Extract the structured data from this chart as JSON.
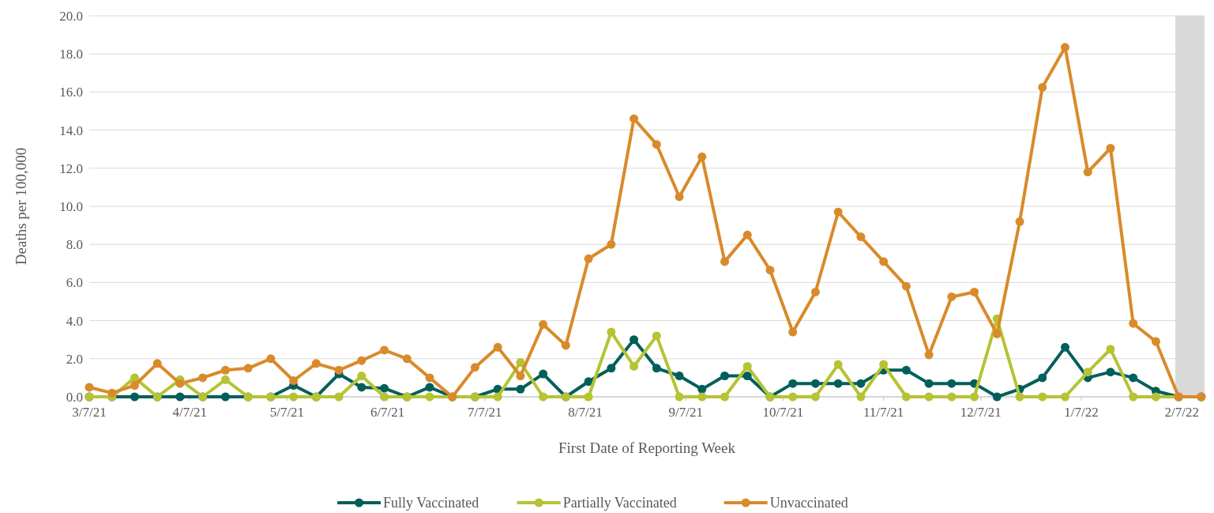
{
  "chart_data": {
    "type": "line",
    "xlabel": "First Date of Reporting Week",
    "ylabel": "Deaths per 100,000",
    "x": [
      "2021-03-07",
      "2021-03-14",
      "2021-03-21",
      "2021-03-28",
      "2021-04-04",
      "2021-04-11",
      "2021-04-18",
      "2021-04-25",
      "2021-05-02",
      "2021-05-09",
      "2021-05-16",
      "2021-05-23",
      "2021-05-30",
      "2021-06-06",
      "2021-06-13",
      "2021-06-20",
      "2021-06-27",
      "2021-07-04",
      "2021-07-11",
      "2021-07-18",
      "2021-07-25",
      "2021-08-01",
      "2021-08-08",
      "2021-08-15",
      "2021-08-22",
      "2021-08-29",
      "2021-09-05",
      "2021-09-12",
      "2021-09-19",
      "2021-09-26",
      "2021-10-03",
      "2021-10-10",
      "2021-10-17",
      "2021-10-24",
      "2021-10-31",
      "2021-11-07",
      "2021-11-14",
      "2021-11-21",
      "2021-11-28",
      "2021-12-05",
      "2021-12-12",
      "2021-12-19",
      "2021-12-26",
      "2022-01-02",
      "2022-01-09",
      "2022-01-16",
      "2022-01-23",
      "2022-01-30",
      "2022-02-06",
      "2022-02-13"
    ],
    "series": [
      {
        "name": "Fully Vaccinated",
        "color": "#005f5a",
        "values": [
          0,
          0,
          0,
          0,
          0,
          0,
          0,
          0,
          0,
          0.6,
          0,
          1.2,
          0.5,
          0.45,
          0,
          0.5,
          0,
          0,
          0.4,
          0.4,
          1.2,
          0,
          0.8,
          1.5,
          3.0,
          1.5,
          1.1,
          0.4,
          1.1,
          1.1,
          0,
          0.7,
          0.7,
          0.7,
          0.7,
          1.4,
          1.4,
          0.7,
          0.7,
          0.7,
          0,
          0.4,
          1.0,
          2.6,
          1.0,
          1.3,
          1.0,
          0.3,
          0,
          0
        ]
      },
      {
        "name": "Partially Vaccinated",
        "color": "#b5c334",
        "values": [
          0,
          0,
          1.0,
          0,
          0.9,
          0,
          0.9,
          0,
          0,
          0,
          0,
          0,
          1.1,
          0,
          0,
          0,
          0,
          0,
          0,
          1.8,
          0,
          0,
          0,
          3.4,
          1.6,
          3.2,
          0,
          0,
          0,
          1.6,
          0,
          0,
          0,
          1.7,
          0,
          1.7,
          0,
          0,
          0,
          0,
          4.1,
          0,
          0,
          0,
          1.3,
          2.5,
          0,
          0,
          0,
          0
        ]
      },
      {
        "name": "Unvaccinated",
        "color": "#d98a2b",
        "values": [
          0.5,
          0.2,
          0.6,
          1.75,
          0.7,
          1.0,
          1.4,
          1.5,
          2.0,
          0.85,
          1.75,
          1.4,
          1.9,
          2.45,
          2.0,
          1.0,
          0,
          1.55,
          2.6,
          1.1,
          3.8,
          2.7,
          7.25,
          8.0,
          14.6,
          13.25,
          10.5,
          12.6,
          7.1,
          8.5,
          6.65,
          3.4,
          5.5,
          9.7,
          8.4,
          7.1,
          5.8,
          2.2,
          5.25,
          5.5,
          3.3,
          9.2,
          16.25,
          18.35,
          11.8,
          13.05,
          3.85,
          2.9,
          0,
          0
        ]
      }
    ],
    "xlim": [
      "2021-03-07",
      "2022-02-14"
    ],
    "xticks": [
      {
        "value": "2021-03-07",
        "label": "3/7/21"
      },
      {
        "value": "2021-04-07",
        "label": "4/7/21"
      },
      {
        "value": "2021-05-07",
        "label": "5/7/21"
      },
      {
        "value": "2021-06-07",
        "label": "6/7/21"
      },
      {
        "value": "2021-07-07",
        "label": "7/7/21"
      },
      {
        "value": "2021-08-07",
        "label": "8/7/21"
      },
      {
        "value": "2021-09-07",
        "label": "9/7/21"
      },
      {
        "value": "2021-10-07",
        "label": "10/7/21"
      },
      {
        "value": "2021-11-07",
        "label": "11/7/21"
      },
      {
        "value": "2021-12-07",
        "label": "12/7/21"
      },
      {
        "value": "2022-01-07",
        "label": "1/7/22"
      },
      {
        "value": "2022-02-07",
        "label": "2/7/22"
      }
    ],
    "ylim": [
      0,
      20
    ],
    "yticks": [
      {
        "value": 0,
        "label": "0.0"
      },
      {
        "value": 2,
        "label": "2.0"
      },
      {
        "value": 4,
        "label": "4.0"
      },
      {
        "value": 6,
        "label": "6.0"
      },
      {
        "value": 8,
        "label": "8.0"
      },
      {
        "value": 10,
        "label": "10.0"
      },
      {
        "value": 12,
        "label": "12.0"
      },
      {
        "value": 14,
        "label": "14.0"
      },
      {
        "value": 16,
        "label": "16.0"
      },
      {
        "value": 18,
        "label": "18.0"
      },
      {
        "value": 20,
        "label": "20.0"
      }
    ],
    "bands": [
      {
        "axis": "x",
        "from": "2022-02-05",
        "to": "2022-02-14",
        "color": "#d9d9d9"
      }
    ],
    "grid": "y",
    "legend": "bottom",
    "marker": "circle",
    "line_style": "solid"
  }
}
